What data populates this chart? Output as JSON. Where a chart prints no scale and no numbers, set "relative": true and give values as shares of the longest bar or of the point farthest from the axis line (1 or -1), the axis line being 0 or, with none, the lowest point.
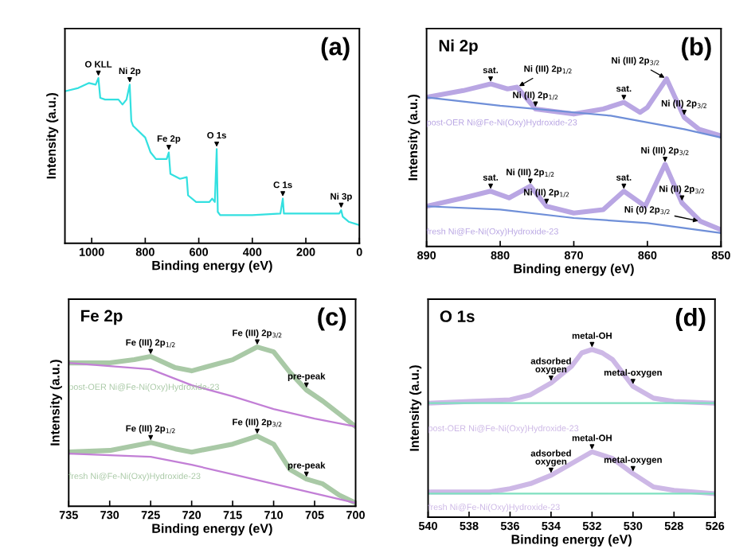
{
  "chart_data": [
    {
      "type": "line",
      "relative": true,
      "xlabel": "Binding energy (eV)",
      "ylabel": "Intensity (a.u.)",
      "xlim": [
        1100,
        0
      ],
      "xticks": [
        1000,
        800,
        600,
        400,
        200,
        0
      ],
      "x": [
        1100,
        1050,
        1010,
        985,
        975,
        968,
        950,
        900,
        885,
        870,
        858,
        852,
        845,
        800,
        780,
        760,
        720,
        712,
        706,
        670,
        645,
        640,
        610,
        560,
        550,
        540,
        533,
        529,
        520,
        400,
        295,
        286,
        282,
        200,
        120,
        75,
        68,
        62,
        40,
        0
      ],
      "series": [
        {
          "color": "#33e0e0",
          "values": [
            0.92,
            0.94,
            0.97,
            0.96,
            1.0,
            0.88,
            0.87,
            0.87,
            0.84,
            0.87,
            0.96,
            0.74,
            0.71,
            0.64,
            0.55,
            0.51,
            0.51,
            0.55,
            0.42,
            0.39,
            0.4,
            0.29,
            0.25,
            0.25,
            0.27,
            0.25,
            0.57,
            0.19,
            0.17,
            0.17,
            0.18,
            0.27,
            0.18,
            0.18,
            0.18,
            0.18,
            0.2,
            0.16,
            0.13,
            0.11
          ]
        }
      ],
      "annotations": [
        "(a)",
        {
          "text": "O KLL",
          "x": 975,
          "y": 1.0
        },
        {
          "text": "Ni 2p",
          "x": 858,
          "y": 0.96
        },
        {
          "text": "Fe 2p",
          "x": 712,
          "y": 0.55
        },
        {
          "text": "O 1s",
          "x": 533,
          "y": 0.57
        },
        {
          "text": "C 1s",
          "x": 286,
          "y": 0.27
        },
        {
          "text": "Ni 3p",
          "x": 68,
          "y": 0.2
        }
      ]
    },
    {
      "type": "line",
      "relative": true,
      "title": "Ni 2p",
      "xlabel": "Binding energy (eV)",
      "ylabel": "Intensity (a.u.)",
      "xlim": [
        890,
        850
      ],
      "xticks": [
        890,
        880,
        870,
        860,
        850
      ],
      "series": [
        {
          "name": "post-OER Ni@Fe-Ni(Oxy)Hydroxide-23",
          "color": "#b9a6e3",
          "x": [
            890,
            885,
            881.3,
            879,
            877.7,
            875.2,
            870,
            866,
            863.2,
            861,
            860,
            857.4,
            855,
            853,
            850
          ],
          "values": [
            0.89,
            0.93,
            0.97,
            0.94,
            0.95,
            0.82,
            0.79,
            0.82,
            0.86,
            0.8,
            0.83,
            1.0,
            0.77,
            0.7,
            0.66
          ]
        },
        {
          "color": "#6f8fd8",
          "x": [
            890,
            880,
            870,
            865,
            860,
            855,
            850
          ],
          "values": [
            0.89,
            0.84,
            0.8,
            0.78,
            0.74,
            0.7,
            0.65
          ]
        },
        {
          "name": "fresh Ni@Fe-Ni(Oxy)Hydroxide-23",
          "color": "#b9a6e3",
          "x": [
            890,
            885,
            881.3,
            878.8,
            875.9,
            873.7,
            870,
            866,
            863.2,
            860.3,
            857.6,
            855.3,
            852.8,
            850
          ],
          "values": [
            0.24,
            0.29,
            0.33,
            0.29,
            0.36,
            0.24,
            0.2,
            0.22,
            0.33,
            0.24,
            0.49,
            0.26,
            0.15,
            0.1
          ]
        },
        {
          "color": "#6f8fd8",
          "x": [
            890,
            880,
            870,
            860,
            855,
            850
          ],
          "values": [
            0.24,
            0.22,
            0.17,
            0.14,
            0.11,
            0.08
          ]
        }
      ],
      "annotations": [
        "(b)",
        {
          "text": "Ni (III) 2p$_{3/2}$",
          "x": 857.4,
          "y": 1.0
        },
        {
          "text": "sat.",
          "x": 881.3,
          "y": 0.97
        },
        {
          "text": "Ni (III) 2p$_{1/2}$",
          "x": 877.7,
          "y": 0.95
        },
        {
          "text": "Ni (II) 2p$_{1/2}$",
          "x": 875.2,
          "y": 0.82
        },
        {
          "text": "sat.",
          "x": 863.2,
          "y": 0.86
        },
        {
          "text": "Ni (II) 2p$_{3/2}$",
          "x": 855,
          "y": 0.77
        },
        {
          "text": "Ni (III) 2p$_{3/2}$",
          "x": 857.6,
          "y": 0.49
        },
        {
          "text": "sat.",
          "x": 881.3,
          "y": 0.33
        },
        {
          "text": "Ni (III) 2p$_{1/2}$",
          "x": 875.9,
          "y": 0.36
        },
        {
          "text": "Ni (II) 2p$_{1/2}$",
          "x": 873.7,
          "y": 0.24
        },
        {
          "text": "sat.",
          "x": 863.2,
          "y": 0.33
        },
        {
          "text": "Ni (II) 2p$_{3/2}$",
          "x": 855.3,
          "y": 0.26
        },
        {
          "text": "Ni (0) 2p$_{3/2}$",
          "x": 852.8,
          "y": 0.15
        }
      ]
    },
    {
      "type": "line",
      "relative": true,
      "title": "Fe 2p",
      "xlabel": "Binding energy (eV)",
      "ylabel": "Intensity (a.u.)",
      "xlim": [
        735,
        700
      ],
      "xticks": [
        735,
        730,
        725,
        720,
        715,
        710,
        705,
        700
      ],
      "series": [
        {
          "name": "post-OER Ni@Fe-Ni(Oxy)Hydroxide-23",
          "color": "#a9c9a6",
          "x": [
            735,
            730,
            727,
            725,
            722,
            720,
            715,
            712,
            710,
            708,
            706,
            704,
            702,
            700
          ],
          "values": [
            0.9,
            0.9,
            0.92,
            0.94,
            0.87,
            0.85,
            0.92,
            1.0,
            0.97,
            0.84,
            0.73,
            0.66,
            0.58,
            0.5
          ]
        },
        {
          "color": "#c27fd6",
          "x": [
            735,
            725,
            720,
            715,
            710,
            705,
            700
          ],
          "values": [
            0.9,
            0.86,
            0.76,
            0.69,
            0.61,
            0.55,
            0.5
          ]
        },
        {
          "name": "fresh Ni@Fe-Ni(Oxy)Hydroxide-23",
          "color": "#a9c9a6",
          "x": [
            735,
            730,
            727,
            725,
            722,
            720,
            715,
            712,
            710,
            708,
            706,
            704,
            702,
            700
          ],
          "values": [
            0.34,
            0.35,
            0.38,
            0.4,
            0.36,
            0.34,
            0.39,
            0.44,
            0.39,
            0.23,
            0.17,
            0.14,
            0.07,
            0.02
          ]
        },
        {
          "color": "#c27fd6",
          "x": [
            735,
            725,
            720,
            715,
            710,
            705,
            700
          ],
          "values": [
            0.33,
            0.31,
            0.26,
            0.2,
            0.14,
            0.08,
            0.02
          ]
        }
      ],
      "annotations": [
        "(c)",
        {
          "text": "Fe (III) 2p$_{1/2}$",
          "x": 725,
          "y": 0.94
        },
        {
          "text": "Fe (III) 2p$_{3/2}$",
          "x": 712,
          "y": 1.0
        },
        {
          "text": "pre-peak",
          "x": 706,
          "y": 0.73
        },
        {
          "text": "Fe (III) 2p$_{1/2}$",
          "x": 725,
          "y": 0.4
        },
        {
          "text": "Fe (III) 2p$_{3/2}$",
          "x": 712,
          "y": 0.44
        },
        {
          "text": "pre-peak",
          "x": 706,
          "y": 0.17
        }
      ]
    },
    {
      "type": "line",
      "relative": true,
      "title": "O 1s",
      "xlabel": "Binding energy (eV)",
      "ylabel": "Intensity (a.u.)",
      "xlim": [
        540,
        526
      ],
      "xticks": [
        540,
        538,
        536,
        534,
        532,
        530,
        528,
        526
      ],
      "series": [
        {
          "name": "post-OER Ni@Fe-Ni(Oxy)Hydroxide-23",
          "color": "#cdb8e6",
          "x": [
            540,
            538,
            536,
            535,
            534,
            533,
            532.5,
            532,
            531.5,
            531,
            530,
            529,
            528,
            526
          ],
          "values": [
            0.68,
            0.69,
            0.7,
            0.73,
            0.8,
            0.9,
            0.98,
            1.0,
            0.98,
            0.94,
            0.78,
            0.71,
            0.69,
            0.68
          ]
        },
        {
          "color": "#7fe0c0",
          "x": [
            540,
            526
          ],
          "values": [
            0.68,
            0.68
          ]
        },
        {
          "name": "fresh Ni@Fe-Ni(Oxy)Hydroxide-23",
          "color": "#cdb8e6",
          "x": [
            540,
            537,
            536,
            535,
            534,
            533,
            532,
            531,
            530,
            529,
            528,
            526
          ],
          "values": [
            0.15,
            0.15,
            0.17,
            0.2,
            0.25,
            0.32,
            0.39,
            0.35,
            0.26,
            0.18,
            0.16,
            0.14
          ]
        },
        {
          "color": "#7fe0c0",
          "x": [
            540,
            526
          ],
          "values": [
            0.14,
            0.14
          ]
        }
      ],
      "annotations": [
        "(d)",
        {
          "text": "metal-OH",
          "x": 532,
          "y": 1.0
        },
        {
          "text": "adsorbed\noxygen",
          "x": 534,
          "y": 0.8
        },
        {
          "text": "metal-oxygen",
          "x": 530,
          "y": 0.78
        },
        {
          "text": "metal-OH",
          "x": 532,
          "y": 0.39
        },
        {
          "text": "adsorbed\noxygen",
          "x": 534,
          "y": 0.25
        },
        {
          "text": "metal-oxygen",
          "x": 530,
          "y": 0.26
        }
      ]
    }
  ]
}
